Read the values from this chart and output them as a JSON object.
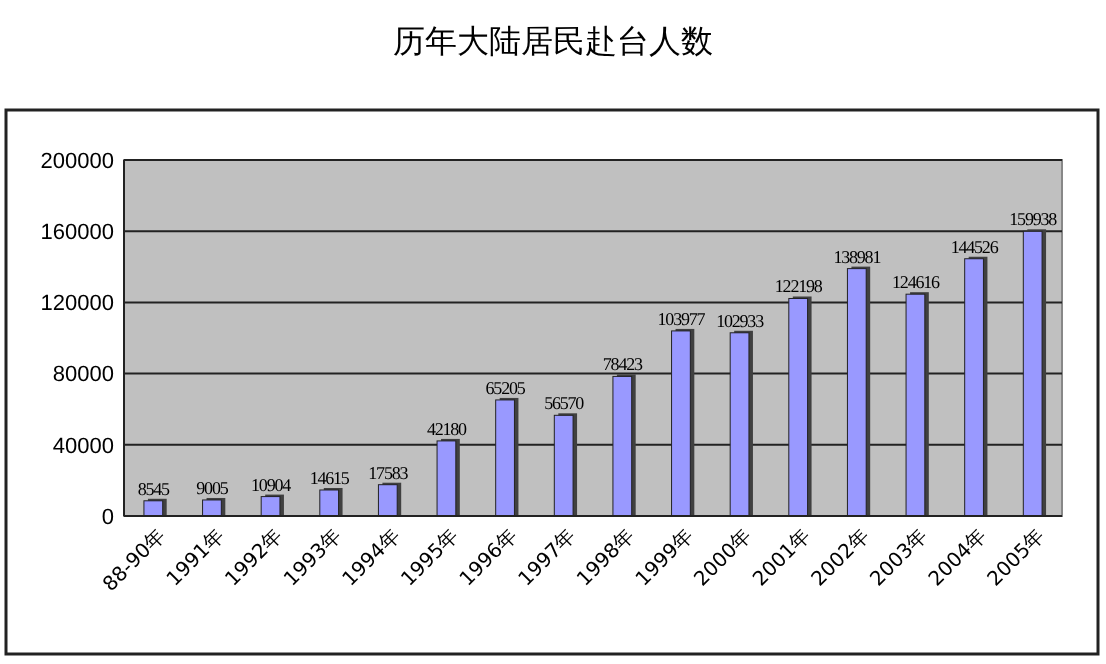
{
  "chart_data": {
    "type": "bar",
    "title": "历年大陆居民赴台人数",
    "categories": [
      "88-90年",
      "1991年",
      "1992年",
      "1993年",
      "1994年",
      "1995年",
      "1996年",
      "1997年",
      "1998年",
      "1999年",
      "2000年",
      "2001年",
      "2002年",
      "2003年",
      "2004年",
      "2005年"
    ],
    "values": [
      8545,
      9005,
      10904,
      14615,
      17583,
      42180,
      65205,
      56570,
      78423,
      103977,
      102933,
      122198,
      138981,
      124616,
      144526,
      159938
    ],
    "color": "#9999ff",
    "ylim": [
      0,
      200000
    ],
    "yticks": [
      0,
      40000,
      80000,
      120000,
      160000,
      200000
    ],
    "grid": "y",
    "data_labels": true
  }
}
